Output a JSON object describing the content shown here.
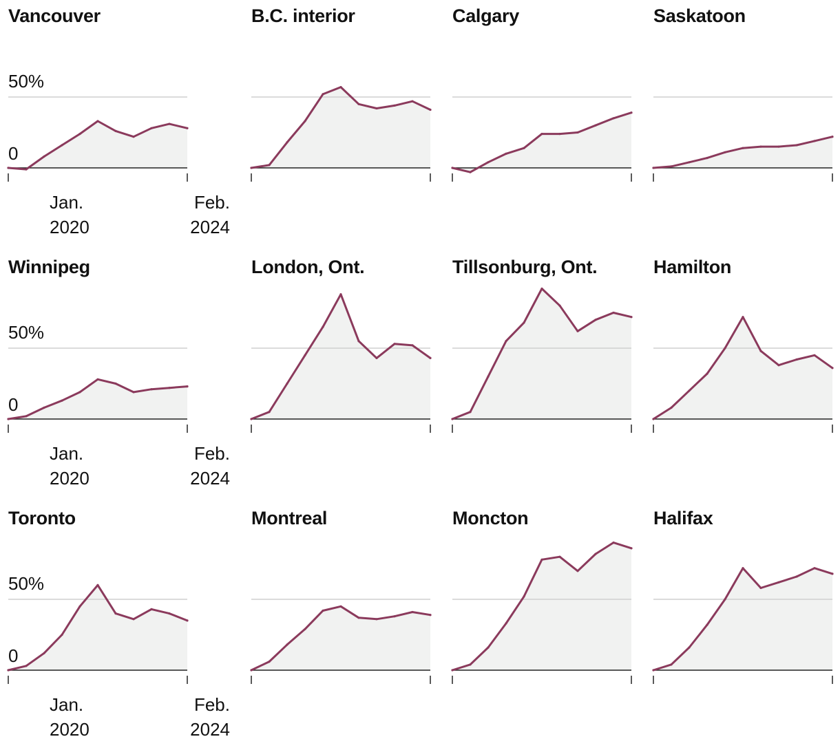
{
  "colors": {
    "line": "#8b3a5c",
    "fill": "#f1f2f1",
    "grid": "#cfcfcf",
    "axis": "#222222"
  },
  "axis_labels": {
    "y_ticks": [
      "0",
      "50%"
    ],
    "x_start_month": "Jan.",
    "x_start_year": "2020",
    "x_end_month": "Feb.",
    "x_end_year": "2024"
  },
  "chart_data": [
    {
      "type": "area",
      "title": "Vancouver",
      "x": [
        0,
        0.1,
        0.2,
        0.3,
        0.4,
        0.5,
        0.6,
        0.7,
        0.8,
        0.9,
        1
      ],
      "values": [
        0,
        -1,
        8,
        16,
        24,
        33,
        26,
        22,
        28,
        31,
        28
      ],
      "ylim": [
        -10,
        95
      ],
      "yticks": [
        0,
        50
      ]
    },
    {
      "type": "area",
      "title": "B.C. interior",
      "x": [
        0,
        0.1,
        0.2,
        0.3,
        0.4,
        0.5,
        0.6,
        0.7,
        0.8,
        0.9,
        1
      ],
      "values": [
        0,
        2,
        18,
        33,
        52,
        57,
        45,
        42,
        44,
        47,
        41
      ],
      "ylim": [
        -10,
        95
      ],
      "yticks": [
        0,
        50
      ]
    },
    {
      "type": "area",
      "title": "Calgary",
      "x": [
        0,
        0.1,
        0.2,
        0.3,
        0.4,
        0.5,
        0.6,
        0.7,
        0.8,
        0.9,
        1
      ],
      "values": [
        0,
        -3,
        4,
        10,
        14,
        24,
        24,
        25,
        30,
        35,
        39
      ],
      "ylim": [
        -10,
        95
      ],
      "yticks": [
        0,
        50
      ]
    },
    {
      "type": "area",
      "title": "Saskatoon",
      "x": [
        0,
        0.1,
        0.2,
        0.3,
        0.4,
        0.5,
        0.6,
        0.7,
        0.8,
        0.9,
        1
      ],
      "values": [
        0,
        1,
        4,
        7,
        11,
        14,
        15,
        15,
        16,
        19,
        22
      ],
      "ylim": [
        -10,
        95
      ],
      "yticks": [
        0,
        50
      ]
    },
    {
      "type": "area",
      "title": "Winnipeg",
      "x": [
        0,
        0.1,
        0.2,
        0.3,
        0.4,
        0.5,
        0.6,
        0.7,
        0.8,
        0.9,
        1
      ],
      "values": [
        0,
        2,
        8,
        13,
        19,
        28,
        25,
        19,
        21,
        22,
        23
      ],
      "ylim": [
        -10,
        95
      ],
      "yticks": [
        0,
        50
      ]
    },
    {
      "type": "area",
      "title": "London, Ont.",
      "x": [
        0,
        0.1,
        0.2,
        0.3,
        0.4,
        0.5,
        0.6,
        0.7,
        0.8,
        0.9,
        1
      ],
      "values": [
        0,
        5,
        25,
        45,
        65,
        88,
        55,
        43,
        53,
        52,
        43
      ],
      "ylim": [
        -10,
        95
      ],
      "yticks": [
        0,
        50
      ]
    },
    {
      "type": "area",
      "title": "Tillsonburg, Ont.",
      "x": [
        0,
        0.1,
        0.2,
        0.3,
        0.4,
        0.5,
        0.6,
        0.7,
        0.8,
        0.9,
        1
      ],
      "values": [
        0,
        5,
        30,
        55,
        68,
        92,
        80,
        62,
        70,
        75,
        72
      ],
      "ylim": [
        -10,
        95
      ],
      "yticks": [
        0,
        50
      ]
    },
    {
      "type": "area",
      "title": "Hamilton",
      "x": [
        0,
        0.1,
        0.2,
        0.3,
        0.4,
        0.5,
        0.6,
        0.7,
        0.8,
        0.9,
        1
      ],
      "values": [
        0,
        8,
        20,
        32,
        50,
        72,
        48,
        38,
        42,
        45,
        36
      ],
      "ylim": [
        -10,
        95
      ],
      "yticks": [
        0,
        50
      ]
    },
    {
      "type": "area",
      "title": "Toronto",
      "x": [
        0,
        0.1,
        0.2,
        0.3,
        0.4,
        0.5,
        0.6,
        0.7,
        0.8,
        0.9,
        1
      ],
      "values": [
        0,
        3,
        12,
        25,
        45,
        60,
        40,
        36,
        43,
        40,
        35
      ],
      "ylim": [
        -10,
        95
      ],
      "yticks": [
        0,
        50
      ]
    },
    {
      "type": "area",
      "title": "Montreal",
      "x": [
        0,
        0.1,
        0.2,
        0.3,
        0.4,
        0.5,
        0.6,
        0.7,
        0.8,
        0.9,
        1
      ],
      "values": [
        0,
        6,
        18,
        29,
        42,
        45,
        37,
        36,
        38,
        41,
        39
      ],
      "ylim": [
        -10,
        95
      ],
      "yticks": [
        0,
        50
      ]
    },
    {
      "type": "area",
      "title": "Moncton",
      "x": [
        0,
        0.1,
        0.2,
        0.3,
        0.4,
        0.5,
        0.6,
        0.7,
        0.8,
        0.9,
        1
      ],
      "values": [
        0,
        4,
        16,
        33,
        52,
        78,
        80,
        70,
        82,
        90,
        86
      ],
      "ylim": [
        -10,
        95
      ],
      "yticks": [
        0,
        50
      ]
    },
    {
      "type": "area",
      "title": "Halifax",
      "x": [
        0,
        0.1,
        0.2,
        0.3,
        0.4,
        0.5,
        0.6,
        0.7,
        0.8,
        0.9,
        1
      ],
      "values": [
        0,
        4,
        16,
        32,
        50,
        72,
        58,
        62,
        66,
        72,
        68
      ],
      "ylim": [
        -10,
        95
      ],
      "yticks": [
        0,
        50
      ]
    }
  ]
}
